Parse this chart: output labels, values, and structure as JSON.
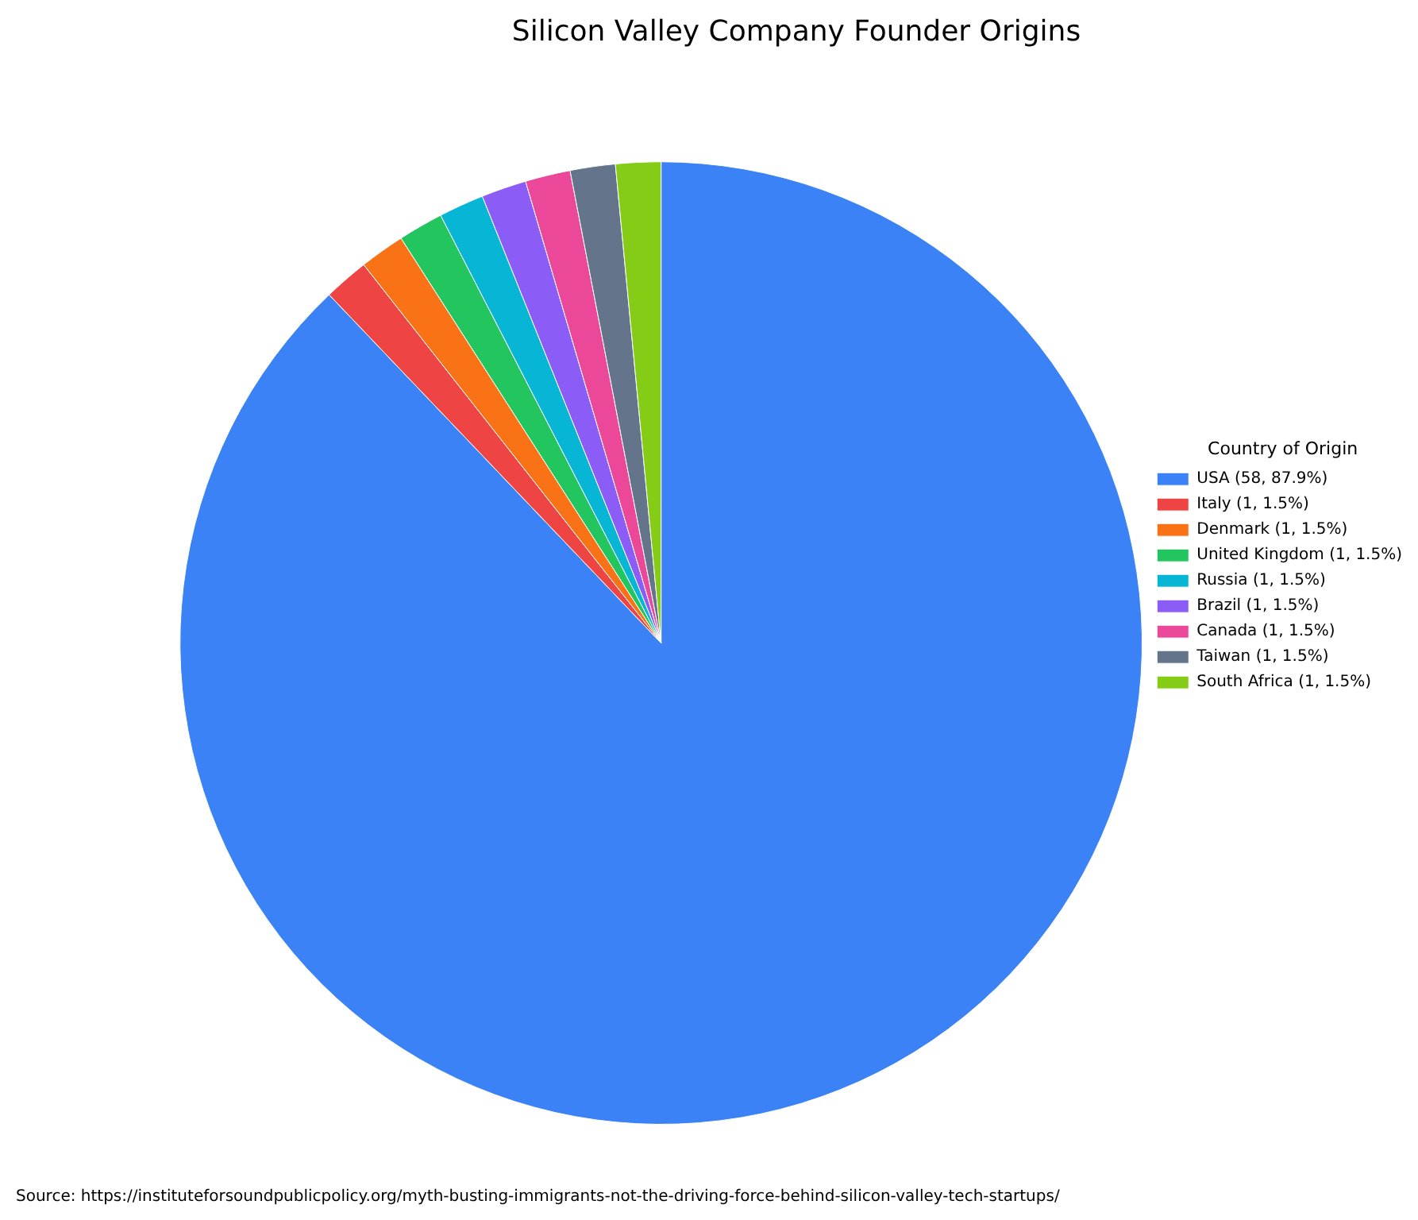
{
  "chart_data": {
    "type": "pie",
    "title": "Silicon Valley Company Founder Origins",
    "legend_title": "Country of Origin",
    "categories": [
      "USA (58, 87.9%)",
      "Italy (1, 1.5%)",
      "Denmark (1, 1.5%)",
      "United Kingdom (1, 1.5%)",
      "Russia (1, 1.5%)",
      "Brazil (1, 1.5%)",
      "Canada (1, 1.5%)",
      "Taiwan (1, 1.5%)",
      "South Africa (1, 1.5%)"
    ],
    "values": [
      58,
      1,
      1,
      1,
      1,
      1,
      1,
      1,
      1
    ],
    "colors": [
      "#3b82f6",
      "#ef4444",
      "#f97316",
      "#22c55e",
      "#06b6d4",
      "#8b5cf6",
      "#ec4899",
      "#64748b",
      "#84cc16"
    ],
    "legend": "right",
    "annotations": [
      "Source: https://instituteforsoundpublicpolicy.org/myth-busting-immigrants-not-the-driving-force-behind-silicon-valley-tech-startups/"
    ]
  }
}
